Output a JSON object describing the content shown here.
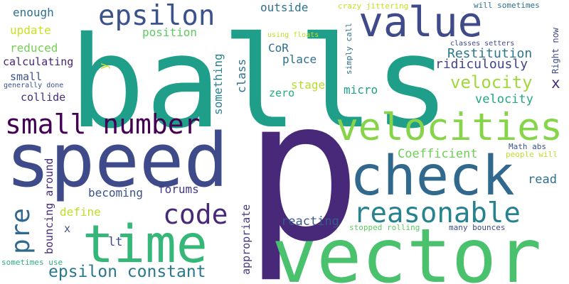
{
  "words": [
    {
      "text": "balls",
      "color": "#1f9e89"
    },
    {
      "text": "p",
      "color": "#482878"
    },
    {
      "text": "speed",
      "color": "#3e4a89"
    },
    {
      "text": "vector",
      "color": "#4ac16d"
    },
    {
      "text": "time",
      "color": "#35b779"
    },
    {
      "text": "check",
      "color": "#31688e"
    },
    {
      "text": "velocities",
      "color": "#86d549"
    },
    {
      "text": "value",
      "color": "#3e4a89"
    },
    {
      "text": "epsilon",
      "color": "#3b528b"
    },
    {
      "text": "small number",
      "color": "#440154"
    },
    {
      "text": "code",
      "color": "#482878"
    },
    {
      "text": "reasonable",
      "color": "#26828e"
    },
    {
      "text": "pre",
      "color": "#31688e"
    },
    {
      "text": "epsilon constant",
      "color": "#2a788e"
    },
    {
      "text": "velocity",
      "color": "#a0da39"
    },
    {
      "text": "x",
      "color": "#472d7b"
    },
    {
      "text": "Restitution",
      "color": "#2a788e"
    },
    {
      "text": "ridiculously",
      "color": "#414487"
    },
    {
      "text": "velocity",
      "color": "#22a884"
    },
    {
      "text": "Coefficient",
      "color": "#6ece58"
    },
    {
      "text": "becoming",
      "color": "#3b528b"
    },
    {
      "text": "forums",
      "color": "#443983"
    },
    {
      "text": "define",
      "color": "#bddf26"
    },
    {
      "text": "reacting",
      "color": "#38598c"
    },
    {
      "text": "read",
      "color": "#2d708e"
    },
    {
      "text": "lt",
      "color": "#3e4a89"
    },
    {
      "text": "enough",
      "color": "#2d708e"
    },
    {
      "text": "outside",
      "color": "#2d708e"
    },
    {
      "text": "position",
      "color": "#5ec962"
    },
    {
      "text": "update",
      "color": "#cae11f"
    },
    {
      "text": "reduced",
      "color": "#75d054"
    },
    {
      "text": "calculating",
      "color": "#482475"
    },
    {
      "text": "small",
      "color": "#3b528b"
    },
    {
      "text": "collide",
      "color": "#472d7b"
    },
    {
      "text": "place",
      "color": "#2d708e"
    },
    {
      "text": "CoR",
      "color": "#2d708e"
    },
    {
      "text": "stage",
      "color": "#b5de2b"
    },
    {
      "text": "micro",
      "color": "#1f9e89"
    },
    {
      "text": "zero",
      "color": "#25ab82"
    },
    {
      "text": "class",
      "color": "#2d708e"
    },
    {
      "text": "something",
      "color": "#26828e"
    },
    {
      "text": "y",
      "color": "#cae11f"
    },
    {
      "text": "bouncing around",
      "color": "#472c7a"
    },
    {
      "text": "appropriate",
      "color": "#443983"
    },
    {
      "text": "x",
      "color": "#3b528b"
    },
    {
      "text": "Right now",
      "color": "#3e4a89"
    },
    {
      "text": "Math abs",
      "color": "#3b528b"
    },
    {
      "text": "people will",
      "color": "#bddf26"
    },
    {
      "text": "stopped rolling",
      "color": "#5ec962"
    },
    {
      "text": "many bounces",
      "color": "#3e4a89"
    },
    {
      "text": "sometimes use",
      "color": "#29af7f"
    },
    {
      "text": "generally done",
      "color": "#3b528b"
    },
    {
      "text": "using floats",
      "color": "#bddf26"
    },
    {
      "text": "simply call",
      "color": "#2d708e"
    },
    {
      "text": "classes setters",
      "color": "#3e4a89"
    },
    {
      "text": "crazy jittering",
      "color": "#c8e020"
    },
    {
      "text": "will sometimes",
      "color": "#2d708e"
    }
  ]
}
